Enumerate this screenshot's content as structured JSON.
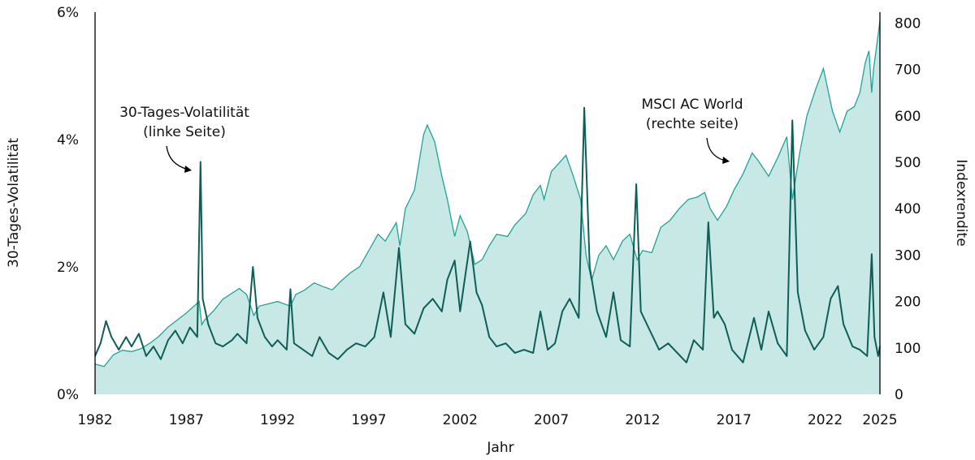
{
  "chart_data": {
    "type": "line",
    "xlabel": "Jahr",
    "ylabel_left": "30-Tages-Volatilität",
    "ylabel_right": "Indexrendite",
    "xlim": [
      1982,
      2025
    ],
    "ylim_left": [
      0,
      6
    ],
    "ylim_right": [
      0,
      820
    ],
    "x_ticks": [
      "1982",
      "1987",
      "1992",
      "1997",
      "2002",
      "2007",
      "2012",
      "2017",
      "2022",
      "2025"
    ],
    "x_tick_values": [
      1982,
      1987,
      1992,
      1997,
      2002,
      2007,
      2012,
      2017,
      2022,
      2025
    ],
    "y_left_ticks": [
      "0%",
      "2%",
      "4%",
      "6%"
    ],
    "y_left_tick_values": [
      0,
      2,
      4,
      6
    ],
    "y_right_ticks": [
      "0",
      "100",
      "200",
      "300",
      "400",
      "500",
      "600",
      "700",
      "800"
    ],
    "y_right_tick_values": [
      0,
      100,
      200,
      300,
      400,
      500,
      600,
      700,
      800
    ],
    "grid": false,
    "annotations": [
      {
        "lines": [
          "30-Tages-Volatilität",
          "(linke Seite)"
        ]
      },
      {
        "lines": [
          "MSCI AC World",
          "(rechte seite)"
        ]
      }
    ],
    "colors": {
      "index_line": "#1fa39a",
      "index_fill": "#c8e8e6",
      "volatility": "#0d5e57"
    },
    "series": [
      {
        "name": "MSCI AC World",
        "axis": "right",
        "points": [
          [
            1982,
            65
          ],
          [
            1982.5,
            60
          ],
          [
            1983,
            85
          ],
          [
            1983.5,
            95
          ],
          [
            1984,
            92
          ],
          [
            1984.5,
            98
          ],
          [
            1985,
            110
          ],
          [
            1985.5,
            125
          ],
          [
            1986,
            145
          ],
          [
            1986.5,
            160
          ],
          [
            1987,
            175
          ],
          [
            1987.7,
            200
          ],
          [
            1987.85,
            150
          ],
          [
            1988,
            160
          ],
          [
            1988.5,
            180
          ],
          [
            1989,
            205
          ],
          [
            1989.9,
            228
          ],
          [
            1990.3,
            215
          ],
          [
            1990.7,
            170
          ],
          [
            1991,
            190
          ],
          [
            1991.5,
            195
          ],
          [
            1992,
            200
          ],
          [
            1992.7,
            190
          ],
          [
            1993,
            215
          ],
          [
            1993.5,
            225
          ],
          [
            1994,
            240
          ],
          [
            1994.5,
            232
          ],
          [
            1995,
            225
          ],
          [
            1995.5,
            245
          ],
          [
            1996,
            262
          ],
          [
            1996.5,
            275
          ],
          [
            1997,
            310
          ],
          [
            1997.5,
            345
          ],
          [
            1997.9,
            330
          ],
          [
            1998.5,
            370
          ],
          [
            1998.7,
            320
          ],
          [
            1999,
            400
          ],
          [
            1999.5,
            440
          ],
          [
            2000.0,
            560
          ],
          [
            2000.2,
            580
          ],
          [
            2000.6,
            545
          ],
          [
            2001,
            470
          ],
          [
            2001.3,
            420
          ],
          [
            2001.7,
            340
          ],
          [
            2002,
            385
          ],
          [
            2002.4,
            350
          ],
          [
            2002.8,
            280
          ],
          [
            2003.2,
            290
          ],
          [
            2003.6,
            320
          ],
          [
            2004,
            345
          ],
          [
            2004.6,
            340
          ],
          [
            2005,
            365
          ],
          [
            2005.6,
            390
          ],
          [
            2006,
            430
          ],
          [
            2006.4,
            450
          ],
          [
            2006.6,
            420
          ],
          [
            2007,
            480
          ],
          [
            2007.8,
            515
          ],
          [
            2008.2,
            470
          ],
          [
            2008.6,
            420
          ],
          [
            2008.9,
            300
          ],
          [
            2009.2,
            245
          ],
          [
            2009.6,
            300
          ],
          [
            2010,
            320
          ],
          [
            2010.4,
            290
          ],
          [
            2010.9,
            330
          ],
          [
            2011.3,
            345
          ],
          [
            2011.7,
            290
          ],
          [
            2012,
            310
          ],
          [
            2012.5,
            305
          ],
          [
            2013,
            360
          ],
          [
            2013.5,
            375
          ],
          [
            2014,
            400
          ],
          [
            2014.5,
            420
          ],
          [
            2015,
            425
          ],
          [
            2015.4,
            435
          ],
          [
            2015.7,
            400
          ],
          [
            2016.1,
            375
          ],
          [
            2016.6,
            405
          ],
          [
            2017,
            440
          ],
          [
            2017.5,
            475
          ],
          [
            2018,
            520
          ],
          [
            2018.3,
            505
          ],
          [
            2018.9,
            470
          ],
          [
            2019.4,
            510
          ],
          [
            2019.9,
            555
          ],
          [
            2020.2,
            420
          ],
          [
            2020.6,
            520
          ],
          [
            2021,
            600
          ],
          [
            2021.5,
            660
          ],
          [
            2021.9,
            702
          ],
          [
            2022.4,
            610
          ],
          [
            2022.8,
            565
          ],
          [
            2023.2,
            610
          ],
          [
            2023.6,
            620
          ],
          [
            2023.9,
            650
          ],
          [
            2024.2,
            715
          ],
          [
            2024.4,
            740
          ],
          [
            2024.55,
            650
          ],
          [
            2024.65,
            700
          ],
          [
            2024.9,
            775
          ],
          [
            2025,
            805
          ]
        ]
      },
      {
        "name": "30-Tages-Volatilität",
        "axis": "left",
        "points": [
          [
            1982,
            0.6
          ],
          [
            1982.3,
            0.8
          ],
          [
            1982.6,
            1.15
          ],
          [
            1982.9,
            0.9
          ],
          [
            1983.3,
            0.7
          ],
          [
            1983.7,
            0.9
          ],
          [
            1984,
            0.75
          ],
          [
            1984.4,
            0.95
          ],
          [
            1984.8,
            0.6
          ],
          [
            1985.2,
            0.75
          ],
          [
            1985.6,
            0.55
          ],
          [
            1986,
            0.85
          ],
          [
            1986.4,
            1.0
          ],
          [
            1986.8,
            0.8
          ],
          [
            1987.2,
            1.05
          ],
          [
            1987.6,
            0.9
          ],
          [
            1987.78,
            3.65
          ],
          [
            1987.9,
            1.5
          ],
          [
            1988.2,
            1.1
          ],
          [
            1988.6,
            0.8
          ],
          [
            1989,
            0.75
          ],
          [
            1989.5,
            0.85
          ],
          [
            1989.8,
            0.95
          ],
          [
            1990.3,
            0.8
          ],
          [
            1990.65,
            2.0
          ],
          [
            1990.9,
            1.2
          ],
          [
            1991.3,
            0.9
          ],
          [
            1991.7,
            0.75
          ],
          [
            1992,
            0.85
          ],
          [
            1992.5,
            0.7
          ],
          [
            1992.7,
            1.65
          ],
          [
            1992.9,
            0.8
          ],
          [
            1993.4,
            0.7
          ],
          [
            1993.9,
            0.6
          ],
          [
            1994.3,
            0.9
          ],
          [
            1994.8,
            0.65
          ],
          [
            1995.3,
            0.55
          ],
          [
            1995.8,
            0.7
          ],
          [
            1996.3,
            0.8
          ],
          [
            1996.8,
            0.75
          ],
          [
            1997.3,
            0.9
          ],
          [
            1997.8,
            1.6
          ],
          [
            1998.2,
            0.9
          ],
          [
            1998.65,
            2.3
          ],
          [
            1999,
            1.1
          ],
          [
            1999.5,
            0.95
          ],
          [
            2000,
            1.35
          ],
          [
            2000.5,
            1.5
          ],
          [
            2001,
            1.3
          ],
          [
            2001.3,
            1.8
          ],
          [
            2001.7,
            2.1
          ],
          [
            2002,
            1.3
          ],
          [
            2002.55,
            2.4
          ],
          [
            2002.9,
            1.6
          ],
          [
            2003.2,
            1.4
          ],
          [
            2003.6,
            0.9
          ],
          [
            2004,
            0.75
          ],
          [
            2004.5,
            0.8
          ],
          [
            2005,
            0.65
          ],
          [
            2005.5,
            0.7
          ],
          [
            2006,
            0.65
          ],
          [
            2006.4,
            1.3
          ],
          [
            2006.8,
            0.7
          ],
          [
            2007.2,
            0.8
          ],
          [
            2007.6,
            1.3
          ],
          [
            2008,
            1.5
          ],
          [
            2008.5,
            1.2
          ],
          [
            2008.8,
            4.5
          ],
          [
            2009.1,
            2.0
          ],
          [
            2009.5,
            1.3
          ],
          [
            2010,
            0.9
          ],
          [
            2010.4,
            1.6
          ],
          [
            2010.8,
            0.85
          ],
          [
            2011.3,
            0.75
          ],
          [
            2011.65,
            3.3
          ],
          [
            2011.9,
            1.3
          ],
          [
            2012.4,
            1.0
          ],
          [
            2012.9,
            0.7
          ],
          [
            2013.4,
            0.8
          ],
          [
            2013.9,
            0.65
          ],
          [
            2014.4,
            0.5
          ],
          [
            2014.8,
            0.85
          ],
          [
            2015.3,
            0.7
          ],
          [
            2015.6,
            2.7
          ],
          [
            2015.9,
            1.2
          ],
          [
            2016.1,
            1.3
          ],
          [
            2016.5,
            1.1
          ],
          [
            2016.9,
            0.7
          ],
          [
            2017.5,
            0.5
          ],
          [
            2018.1,
            1.2
          ],
          [
            2018.5,
            0.7
          ],
          [
            2018.9,
            1.3
          ],
          [
            2019.4,
            0.8
          ],
          [
            2019.9,
            0.6
          ],
          [
            2020.2,
            4.3
          ],
          [
            2020.5,
            1.6
          ],
          [
            2020.9,
            1.0
          ],
          [
            2021.4,
            0.7
          ],
          [
            2021.9,
            0.9
          ],
          [
            2022.3,
            1.5
          ],
          [
            2022.7,
            1.7
          ],
          [
            2023,
            1.1
          ],
          [
            2023.5,
            0.75
          ],
          [
            2023.9,
            0.7
          ],
          [
            2024.3,
            0.6
          ],
          [
            2024.55,
            2.2
          ],
          [
            2024.7,
            0.9
          ],
          [
            2024.9,
            0.6
          ],
          [
            2025,
            0.75
          ]
        ]
      }
    ]
  }
}
